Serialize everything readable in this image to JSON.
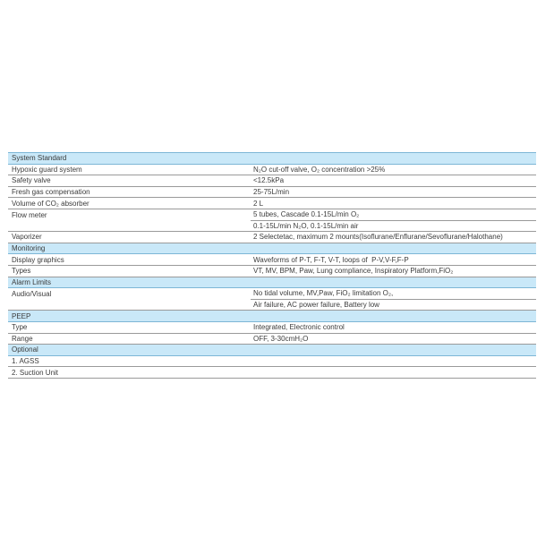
{
  "colors": {
    "section_bg": "#c9e8f8",
    "section_border": "#7db6d6",
    "row_border": "#9a9a9a",
    "text": "#3b3b3b"
  },
  "table": {
    "rows": [
      {
        "type": "section",
        "label": "System Standard"
      },
      {
        "type": "data",
        "label": "Hypoxic guard system",
        "value": "N₂O cut-off valve, O₂ concentration >25%"
      },
      {
        "type": "data",
        "label": "Safety valve",
        "value": "<12.5kPa"
      },
      {
        "type": "data",
        "label": "Fresh gas compensation",
        "value": "25-75L/min"
      },
      {
        "type": "data",
        "label": "Volume of CO₂ absorber",
        "value": "2 L"
      },
      {
        "type": "data",
        "label": "Flow meter",
        "value": "5 tubes, Cascade 0.1-15L/min O₂",
        "divider": "value-only"
      },
      {
        "type": "data",
        "label": "",
        "value": "0.1-15L/min N₂O, 0.1-15L/min air"
      },
      {
        "type": "data",
        "label": "Vaporizer",
        "value": "2 Selectetac, maximum 2 mounts(Isoflurane/Enflurane/Sevoflurane/Halothane)"
      },
      {
        "type": "section",
        "label": "Monitoring"
      },
      {
        "type": "data",
        "label": "Display graphics",
        "value": "Waveforms of P-T, F-T, V-T, loops of  P-V,V-F,F-P"
      },
      {
        "type": "data",
        "label": "Types",
        "value": "VT, MV, BPM, Paw, Lung compliance, Inspiratory Platform,FiO₂"
      },
      {
        "type": "section",
        "label": "Alarm Limits"
      },
      {
        "type": "data",
        "label": "Audio/Visual",
        "value": "No tidal volume, MV,Paw, FiO₂ limitation O₂,",
        "divider": "value-only"
      },
      {
        "type": "data",
        "label": "",
        "value": "Air failure, AC power failure, Battery low"
      },
      {
        "type": "section",
        "label": "PEEP"
      },
      {
        "type": "data",
        "label": "Type",
        "value": "Integrated, Electronic control"
      },
      {
        "type": "data",
        "label": "Range",
        "value": "OFF, 3-30cmH₂O"
      },
      {
        "type": "section",
        "label": "Optional"
      },
      {
        "type": "data",
        "label": "1. AGSS",
        "value": ""
      },
      {
        "type": "data",
        "label": "2. Suction Unit",
        "value": ""
      }
    ]
  }
}
